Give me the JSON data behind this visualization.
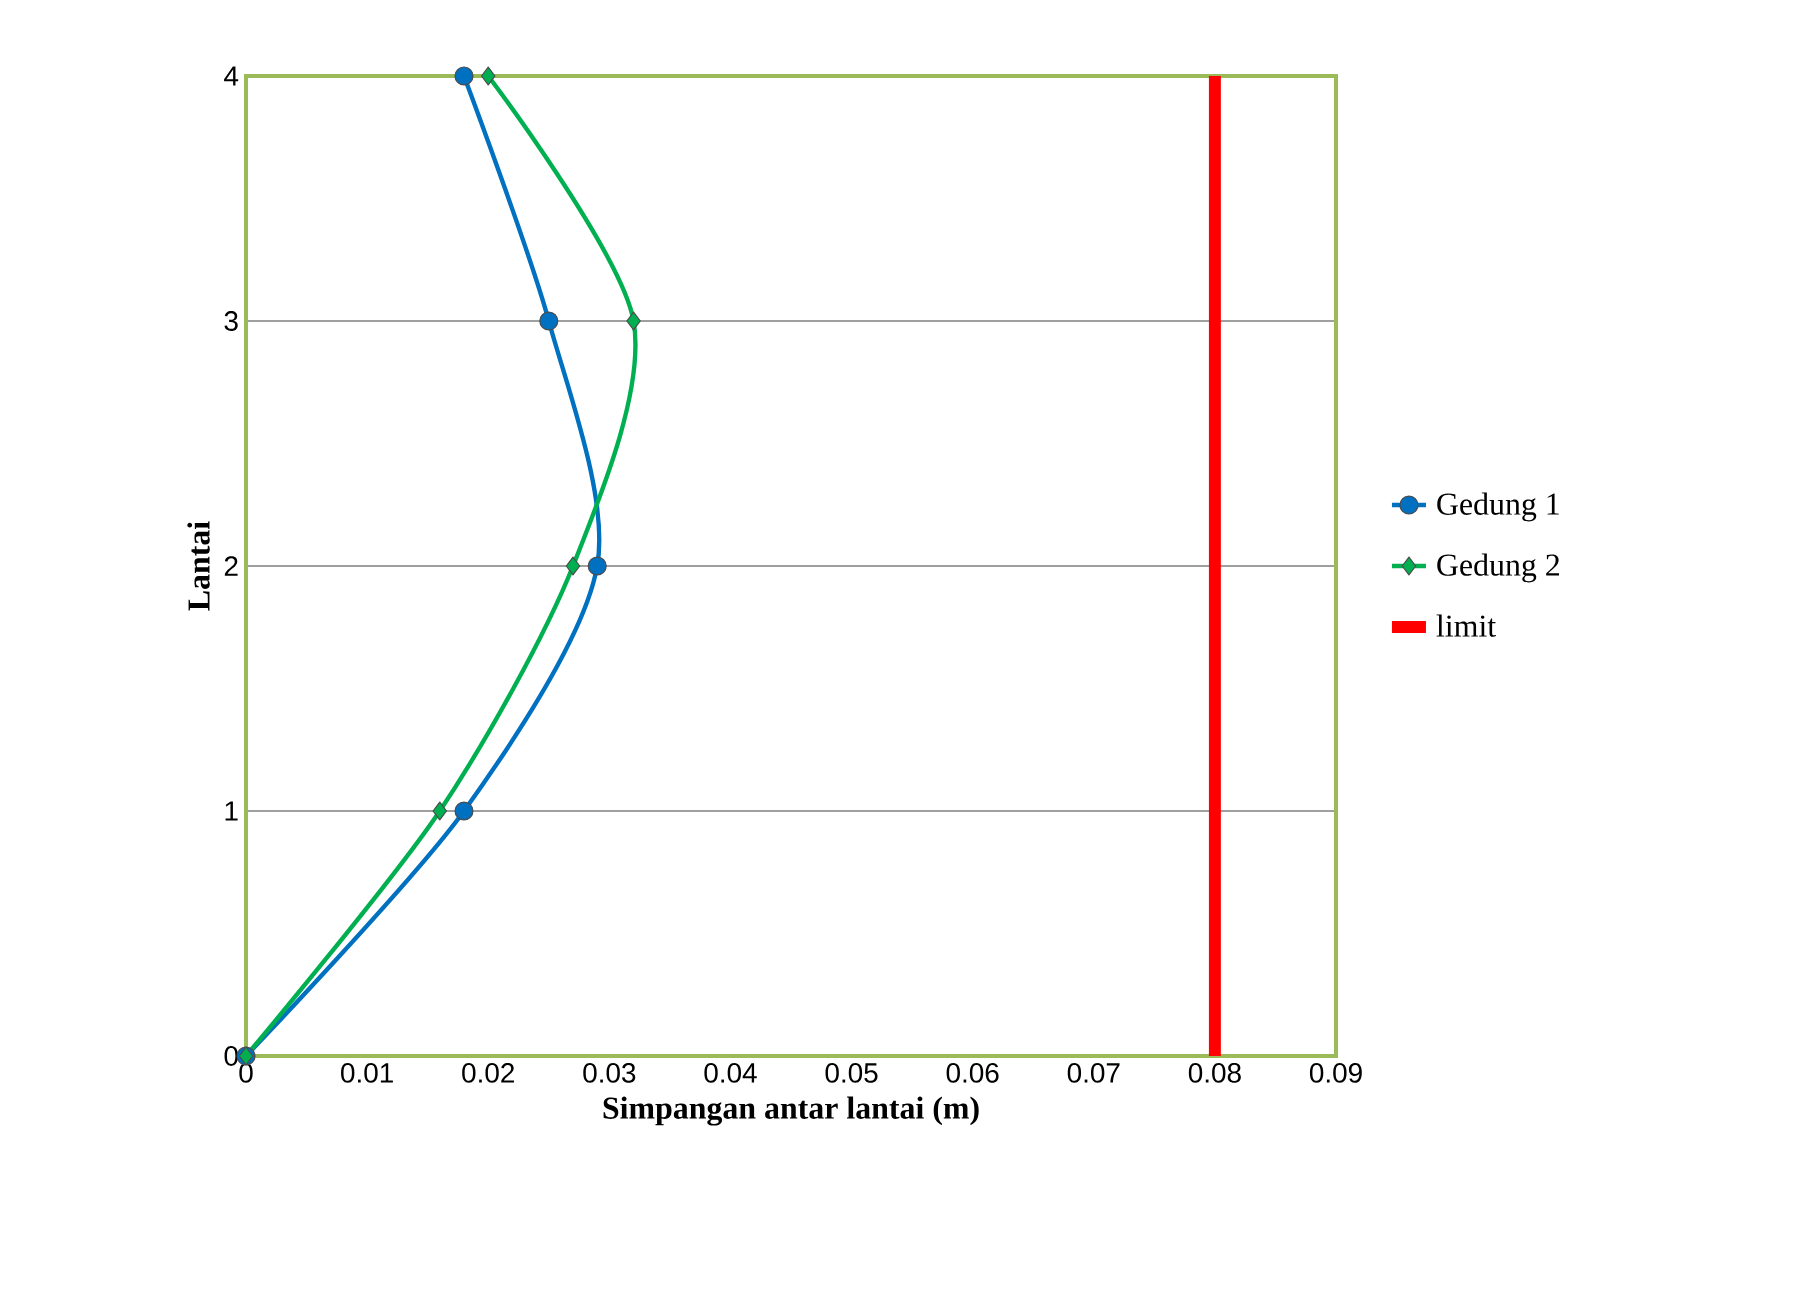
{
  "chart_data": {
    "type": "line",
    "xlabel": "Simpangan antar lantai (m)",
    "ylabel": "Lantai",
    "xlim": [
      0,
      0.09
    ],
    "xticks": [
      0,
      0.01,
      0.02,
      0.03,
      0.04,
      0.05,
      0.06,
      0.07,
      0.08,
      0.09
    ],
    "ylim": [
      0,
      4
    ],
    "yticks": [
      0,
      1,
      2,
      3,
      4
    ],
    "grid": "y",
    "legend": "right",
    "series": [
      {
        "name": "Gedung 1",
        "color": "#0070c0",
        "marker": "circle",
        "x": [
          0,
          0.018,
          0.029,
          0.025,
          0.018
        ],
        "values": [
          0,
          1,
          2,
          3,
          4
        ]
      },
      {
        "name": "Gedung 2",
        "color": "#00b050",
        "marker": "diamond",
        "x": [
          0,
          0.016,
          0.027,
          0.032,
          0.02
        ],
        "values": [
          0,
          1,
          2,
          3,
          4
        ]
      },
      {
        "name": "limit",
        "color": "#ff0000",
        "marker": "none",
        "x": [
          0.08,
          0.08
        ],
        "values": [
          0,
          4
        ]
      }
    ]
  }
}
